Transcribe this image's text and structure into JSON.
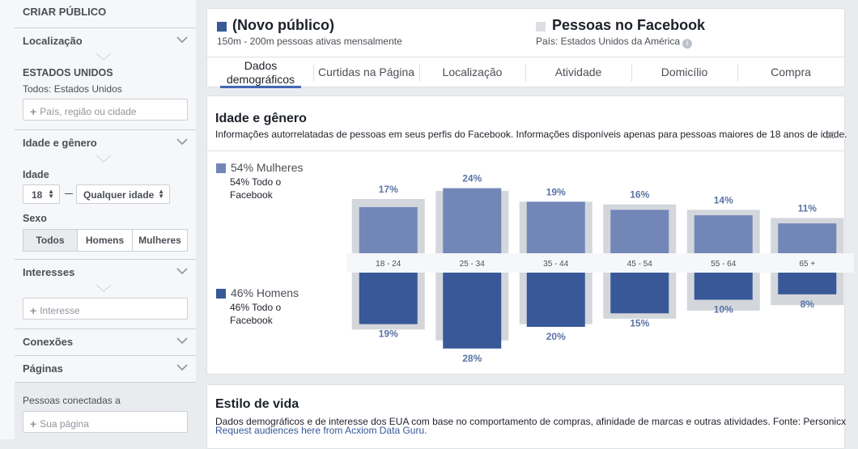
{
  "sidebar": {
    "title": "CRIAR PÚBLICO",
    "location": {
      "label": "Localização",
      "country": "ESTADOS UNIDOS",
      "scope": "Todos: Estados Unidos",
      "placeholder": "País, região ou cidade"
    },
    "age_gender": {
      "label": "Idade e gênero",
      "age_label": "Idade",
      "age_min": "18",
      "age_max": "Qualquer idade",
      "sex_label": "Sexo",
      "sex_options": [
        "Todos",
        "Homens",
        "Mulheres"
      ],
      "sex_selected": "Todos"
    },
    "interests": {
      "label": "Interesses",
      "placeholder": "Interesse"
    },
    "connections": {
      "label": "Conexões"
    },
    "pages": {
      "label": "Páginas",
      "connected_label": "Pessoas conectadas a",
      "placeholder": "Sua página"
    }
  },
  "header": {
    "audience": {
      "title": "(Novo público)",
      "subtitle": "150m - 200m pessoas ativas mensalmente",
      "color": "#3b5998"
    },
    "comparison": {
      "title": "Pessoas no Facebook",
      "subtitle": "País: Estados Unidos da América",
      "color": "#dddfe2"
    },
    "info_icon": "info-icon",
    "tabs": [
      {
        "label": "Dados demográficos",
        "active": true
      },
      {
        "label": "Curtidas na Página",
        "active": false
      },
      {
        "label": "Localização",
        "active": false
      },
      {
        "label": "Atividade",
        "active": false
      },
      {
        "label": "Domicílio",
        "active": false
      },
      {
        "label": "Compra",
        "active": false
      }
    ]
  },
  "age_gender_section": {
    "title": "Idade e gênero",
    "description": "Informações autorrelatadas de pessoas em seus perfis do Facebook. Informações disponíveis apenas para pessoas maiores de 18 anos de idade.",
    "women": {
      "label": "54% Mulheres",
      "sub": "54% Todo o Facebook",
      "color": "#7286b8"
    },
    "men": {
      "label": "46% Homens",
      "sub": "46% Todo o Facebook",
      "color": "#385898"
    }
  },
  "chart_data": {
    "type": "bar",
    "categories": [
      "18 - 24",
      "25 - 34",
      "35 - 44",
      "45 - 54",
      "55 - 64",
      "65 +"
    ],
    "series": [
      {
        "name": "54% Mulheres",
        "values": [
          17,
          24,
          19,
          16,
          14,
          11
        ],
        "baseline": [
          20,
          23,
          19,
          18,
          16,
          13
        ],
        "color": "#7286b8"
      },
      {
        "name": "46% Homens",
        "values": [
          19,
          28,
          20,
          15,
          10,
          8
        ],
        "baseline": [
          21,
          25,
          19,
          17,
          14,
          12
        ],
        "color": "#385898"
      }
    ],
    "value_suffix": "%",
    "baseline_color": "#d3d6db",
    "ylim": [
      0,
      30
    ]
  },
  "lifestyle_section": {
    "title": "Estilo de vida",
    "description": "Dados demográficos e de interesse dos EUA com base no comportamento de compras, afinidade de marcas e outras atividades. Fonte: Personicx",
    "link": "Request audiences here from Acxiom Data Guru."
  }
}
